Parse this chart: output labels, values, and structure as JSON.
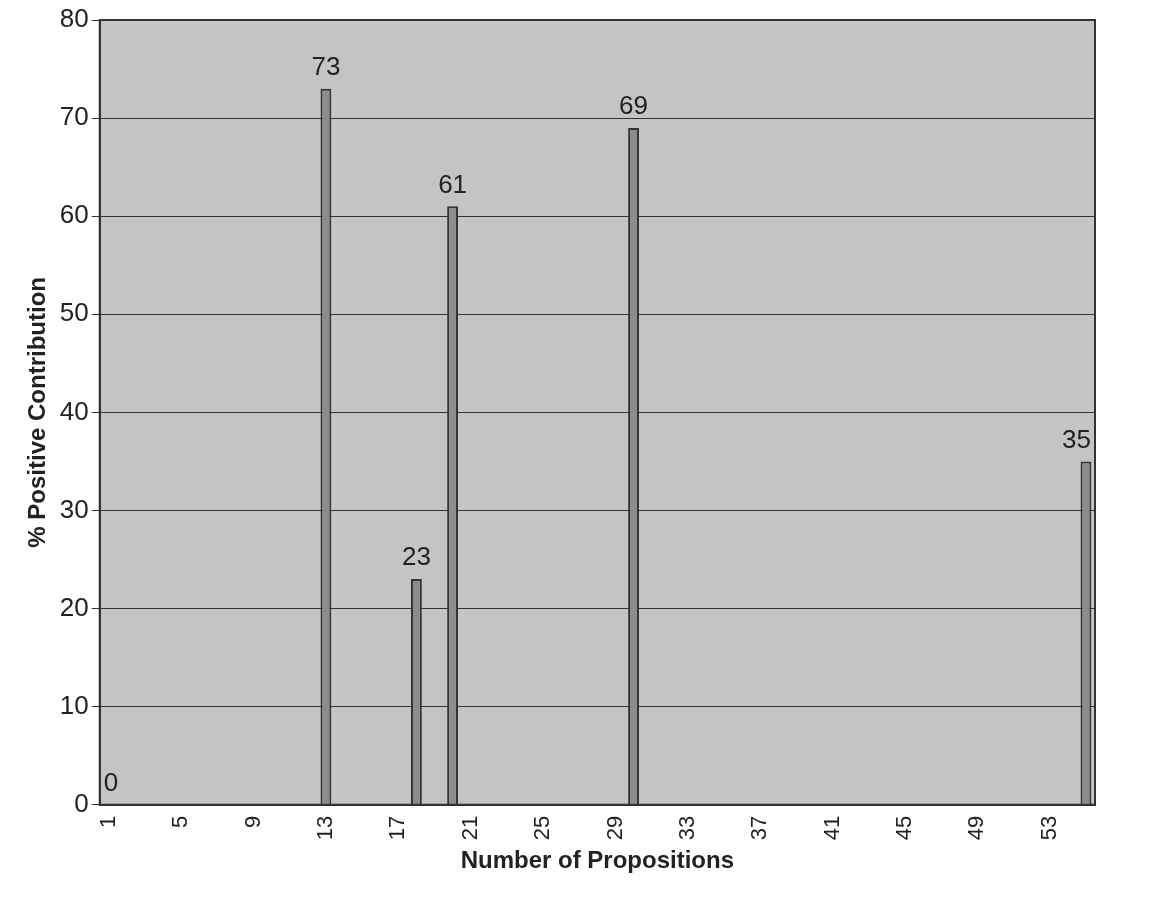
{
  "chart_data": {
    "type": "bar",
    "xlabel": "Number of Propositions",
    "ylabel": "% Positive Contribution",
    "categories": [
      "1",
      null,
      null,
      null,
      "5",
      null,
      null,
      null,
      "9",
      null,
      null,
      null,
      "13",
      null,
      null,
      null,
      "17",
      null,
      null,
      null,
      "21",
      null,
      null,
      null,
      "25",
      null,
      null,
      null,
      "29",
      null,
      null,
      null,
      "33",
      null,
      null,
      null,
      "37",
      null,
      null,
      null,
      "41",
      null,
      null,
      null,
      "45",
      null,
      null,
      null,
      "49",
      null,
      null,
      null,
      "53",
      null,
      null
    ],
    "values": [
      0,
      0,
      0,
      0,
      0,
      0,
      0,
      0,
      0,
      0,
      0,
      0,
      73,
      0,
      0,
      0,
      0,
      23,
      0,
      61,
      0,
      0,
      0,
      0,
      0,
      0,
      0,
      0,
      0,
      69,
      0,
      0,
      0,
      0,
      0,
      0,
      0,
      0,
      0,
      0,
      0,
      0,
      0,
      0,
      0,
      0,
      0,
      0,
      0,
      0,
      0,
      0,
      0,
      0,
      35
    ],
    "value_labels": [
      "0",
      null,
      null,
      null,
      null,
      null,
      null,
      null,
      null,
      null,
      null,
      null,
      "73",
      null,
      null,
      null,
      null,
      "23",
      null,
      "61",
      null,
      null,
      null,
      null,
      null,
      null,
      null,
      null,
      null,
      "69",
      null,
      null,
      null,
      null,
      null,
      null,
      null,
      null,
      null,
      null,
      null,
      null,
      null,
      null,
      null,
      null,
      null,
      null,
      null,
      null,
      null,
      null,
      null,
      null,
      "35"
    ],
    "color": "#8c8c8c",
    "ylim": [
      0,
      80
    ],
    "yticks": [
      0,
      10,
      20,
      30,
      40,
      50,
      60,
      70,
      80
    ],
    "grid": "y",
    "legend": false
  }
}
